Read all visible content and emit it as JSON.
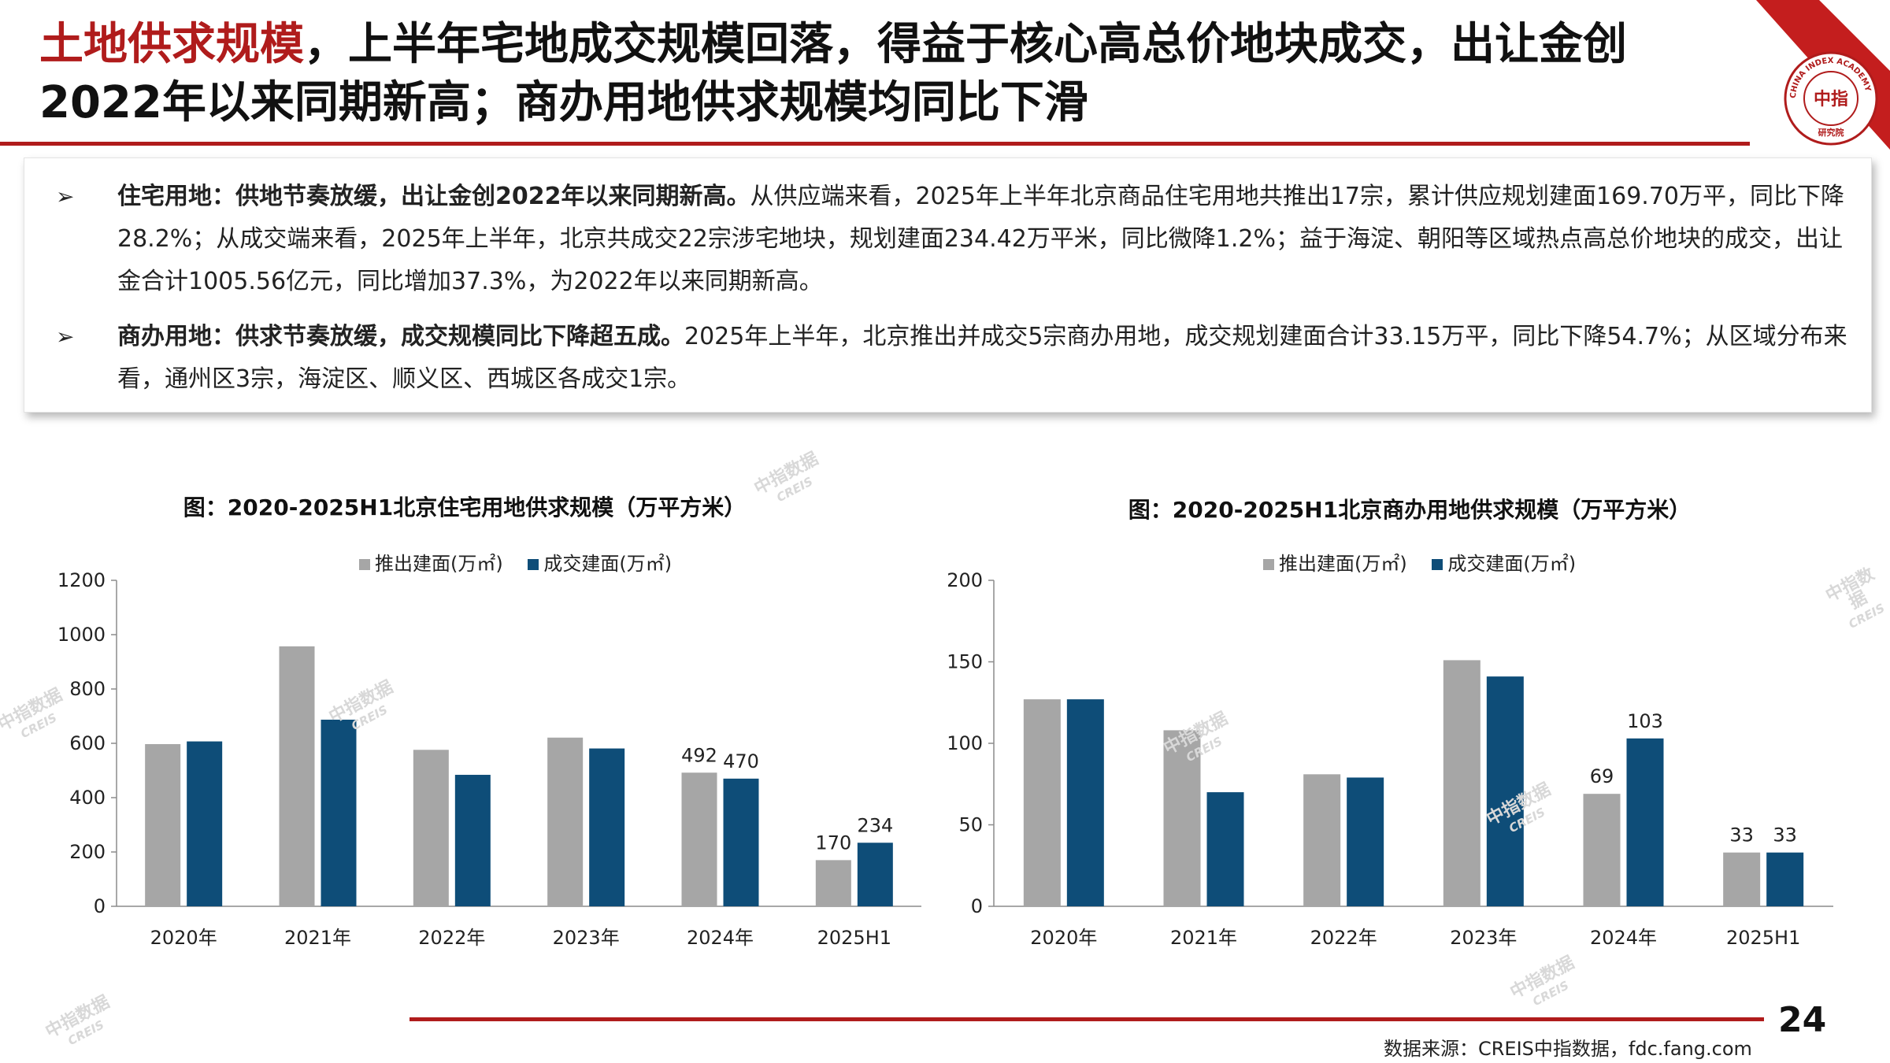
{
  "header": {
    "title_accent": "土地供求规模",
    "title_rest": "，上半年宅地成交规模回落，得益于核心高总价地块成交，出让金创2022年以来同期新高；商办用地供求规模均同比下滑",
    "logo_cn": "中指",
    "logo_arc": "CHINA INDEX ACADEMY",
    "logo_bottom": "研究院"
  },
  "summary": {
    "bullet_mark": "➢",
    "items": [
      {
        "bold": "住宅用地：供地节奏放缓，出让金创2022年以来同期新高。",
        "text": "从供应端来看，2025年上半年北京商品住宅用地共推出17宗，累计供应规划建面169.70万平，同比下降28.2%；从成交端来看，2025年上半年，北京共成交22宗涉宅地块，规划建面234.42万平米，同比微降1.2%；益于海淀、朝阳等区域热点高总价地块的成交，出让金合计1005.56亿元，同比增加37.3%，为2022年以来同期新高。"
      },
      {
        "bold": "商办用地：供求节奏放缓，成交规模同比下降超五成。",
        "text": "2025年上半年，北京推出并成交5宗商办用地，成交规划建面合计33.15万平，同比下降54.7%；从区域分布来看，通州区3宗，海淀区、顺义区、西城区各成交1宗。"
      }
    ]
  },
  "chart_data": [
    {
      "type": "bar",
      "title": "图：2020-2025H1北京住宅用地供求规模（万平方米）",
      "categories": [
        "2020年",
        "2021年",
        "2022年",
        "2023年",
        "2024年",
        "2025H1"
      ],
      "series": [
        {
          "name": "推出建面(万㎡)",
          "color": "#a6a6a6",
          "values": [
            597,
            957,
            576,
            621,
            492,
            170
          ],
          "labels": [
            null,
            null,
            null,
            null,
            "492",
            "170"
          ]
        },
        {
          "name": "成交建面(万㎡)",
          "color": "#0e4d78",
          "values": [
            607,
            687,
            484,
            581,
            470,
            234
          ],
          "labels": [
            null,
            null,
            null,
            null,
            "470",
            "234"
          ]
        }
      ],
      "ylim": [
        0,
        1200
      ],
      "yticks": [
        0,
        200,
        400,
        600,
        800,
        1000,
        1200
      ],
      "legend": "top"
    },
    {
      "type": "bar",
      "title": "图：2020-2025H1北京商办用地供求规模（万平方米）",
      "categories": [
        "2020年",
        "2021年",
        "2022年",
        "2023年",
        "2024年",
        "2025H1"
      ],
      "series": [
        {
          "name": "推出建面(万㎡)",
          "color": "#a6a6a6",
          "values": [
            127,
            108,
            81,
            151,
            69,
            33
          ],
          "labels": [
            null,
            null,
            null,
            null,
            "69",
            "33"
          ]
        },
        {
          "name": "成交建面(万㎡)",
          "color": "#0e4d78",
          "values": [
            127,
            70,
            79,
            141,
            103,
            33
          ],
          "labels": [
            null,
            null,
            null,
            null,
            "103",
            "33"
          ]
        }
      ],
      "ylim": [
        0,
        200
      ],
      "yticks": [
        0,
        50,
        100,
        150,
        200
      ],
      "legend": "top"
    }
  ],
  "footer": {
    "page_number": "24",
    "source": "数据来源：CREIS中指数据，fdc.fang.com"
  },
  "watermark": {
    "cn": "中指数据",
    "en": "CREIS"
  }
}
